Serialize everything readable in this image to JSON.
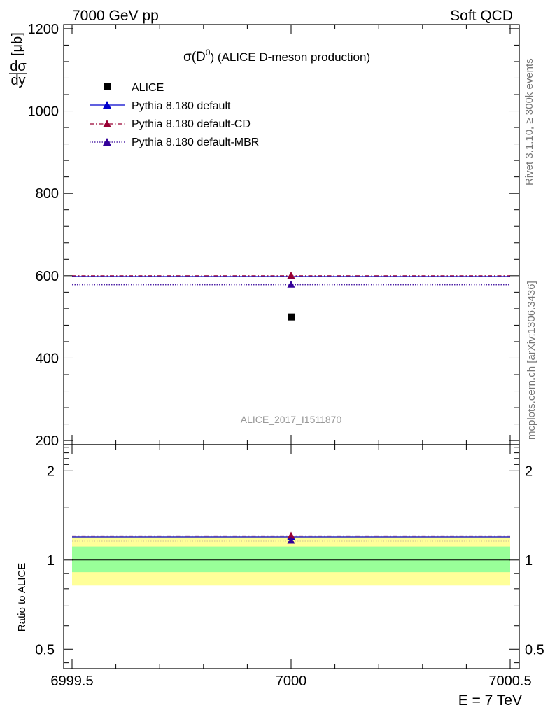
{
  "header": {
    "left": "7000 GeV pp",
    "right": "Soft QCD"
  },
  "side_text": {
    "rivet": "Rivet 3.1.10, ≥ 300k events",
    "mcplots": "mcplots.cern.ch [arXiv:1306.3436]"
  },
  "colors": {
    "alice": "#000000",
    "default": "#0000cc",
    "cd": "#990033",
    "mbr": "#330099",
    "band_inner": "#99ff99",
    "band_outer": "#ffff99"
  },
  "chart_data": [
    {
      "type": "scatter",
      "title": "σ(D⁰) (ALICE D-meson production)",
      "title_main": "σ(D",
      "title_sup": "0",
      "title_rest": ") (ALICE D-meson production)",
      "ylabel": "dσ/dy [μb]",
      "ylabel_num": "dσ",
      "ylabel_den": "dy",
      "ylabel_unit": "[μb]",
      "ylim": [
        190,
        1210
      ],
      "yticks": [
        200,
        400,
        600,
        800,
        1000,
        1200
      ],
      "ytick_labels": [
        "200",
        "400",
        "600",
        "800",
        "1000",
        "1200"
      ],
      "xlim": [
        6999.5,
        7000.5
      ],
      "watermark": "ALICE_2017_I1511870",
      "series": [
        {
          "name": "ALICE",
          "marker": "square",
          "x": [
            7000
          ],
          "y": [
            500
          ]
        },
        {
          "name": "Pythia 8.180 default",
          "marker": "triangle",
          "line": "solid",
          "x": [
            7000
          ],
          "y": [
            598
          ]
        },
        {
          "name": "Pythia 8.180 default-CD",
          "marker": "triangle",
          "line": "dashdot",
          "x": [
            7000
          ],
          "y": [
            600
          ]
        },
        {
          "name": "Pythia 8.180 default-MBR",
          "marker": "triangle",
          "line": "dotted",
          "x": [
            7000
          ],
          "y": [
            578
          ]
        }
      ]
    },
    {
      "type": "scatter",
      "ylabel": "Ratio to ALICE",
      "ylim": [
        0.43,
        2.45
      ],
      "log_y": true,
      "yticks": [
        0.5,
        1,
        2
      ],
      "ytick_labels": [
        "0.5",
        "1",
        "2"
      ],
      "xlim": [
        6999.5,
        7000.5
      ],
      "xticks": [
        6999.5,
        7000,
        7000.5
      ],
      "xtick_labels": [
        "6999.5",
        "7000",
        "7000.5"
      ],
      "xlabel": "E = 7 TeV",
      "reference_band": {
        "inner": [
          0.91,
          1.11
        ],
        "outer": [
          0.82,
          1.2
        ]
      },
      "series": [
        {
          "name": "Pythia 8.180 default",
          "x": [
            7000
          ],
          "y": [
            1.195
          ]
        },
        {
          "name": "Pythia 8.180 default-CD",
          "x": [
            7000
          ],
          "y": [
            1.205
          ]
        },
        {
          "name": "Pythia 8.180 default-MBR",
          "x": [
            7000
          ],
          "y": [
            1.16
          ]
        }
      ]
    }
  ]
}
